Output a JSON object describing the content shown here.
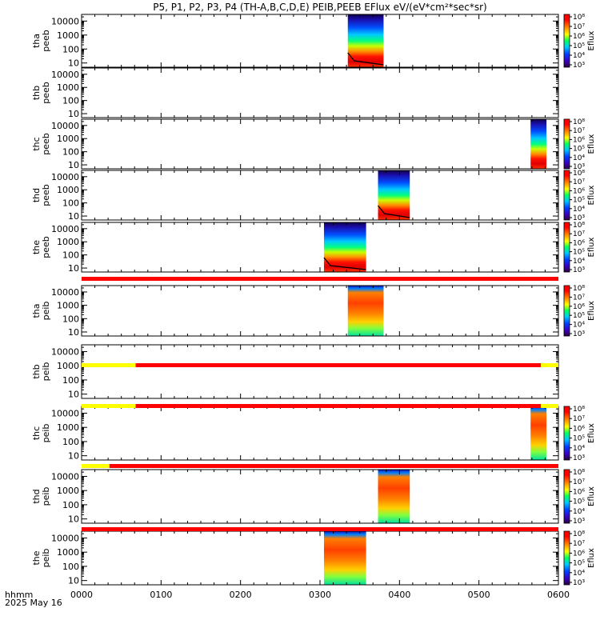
{
  "title": "P5, P1, P2, P3, P4 (TH-A,B,C,D,E) PEIB,PEEB EFlux eV/(eV*cm²*sec*sr)",
  "bottom_left_label": "hhmm",
  "date_label": "2025 May 16",
  "colorbar_label": "Eflux",
  "chart_data": {
    "type": "heatmap",
    "x_unit": "hhmm",
    "xlim": [
      "0000",
      "0600"
    ],
    "x_ticks": [
      "0000",
      "0100",
      "0200",
      "0300",
      "0400",
      "0500",
      "0600"
    ],
    "y_unit": "eV",
    "y_scale": "log",
    "y_ticks": [
      "10",
      "100",
      "1000",
      "10000"
    ],
    "colorbar_ticks": [
      "10³",
      "10⁴",
      "10⁵",
      "10⁶",
      "10⁷",
      "10⁸"
    ],
    "panels": [
      {
        "label": [
          "tha",
          "peeb"
        ],
        "data_start": "0335",
        "data_end": "0380",
        "colorbar": true,
        "pot_line": true
      },
      {
        "label": [
          "thb",
          "peeb"
        ],
        "data_start": null,
        "data_end": null,
        "colorbar": false,
        "pot_line": false
      },
      {
        "label": [
          "thc",
          "peeb"
        ],
        "data_start": "0565",
        "data_end": "0585",
        "colorbar": true,
        "pot_line": false
      },
      {
        "label": [
          "thd",
          "peeb"
        ],
        "data_start": "0373",
        "data_end": "0413",
        "colorbar": true,
        "pot_line": true
      },
      {
        "label": [
          "the",
          "peeb"
        ],
        "data_start": "0305",
        "data_end": "0358",
        "colorbar": true,
        "pot_line": true
      },
      {
        "label": [
          "tha",
          "peib"
        ],
        "data_start": "0335",
        "data_end": "0380",
        "colorbar": true,
        "pot_line": false
      },
      {
        "label": [
          "thb",
          "peib"
        ],
        "data_start": null,
        "data_end": null,
        "colorbar": false,
        "pot_line": false
      },
      {
        "label": [
          "thc",
          "peib"
        ],
        "data_start": "0565",
        "data_end": "0585",
        "colorbar": true,
        "pot_line": false
      },
      {
        "label": [
          "thd",
          "peib"
        ],
        "data_start": "0373",
        "data_end": "0413",
        "colorbar": true,
        "pot_line": false
      },
      {
        "label": [
          "the",
          "peib"
        ],
        "data_start": "0305",
        "data_end": "0358",
        "colorbar": true,
        "pot_line": false
      }
    ],
    "mode_bars": [
      {
        "segments": [
          {
            "from": "0000",
            "to": "0600",
            "color": "#ff0000"
          }
        ]
      },
      {
        "segments": [
          {
            "from": "0000",
            "to": "0068",
            "color": "#ffff00"
          },
          {
            "from": "0068",
            "to": "0578",
            "color": "#ff0000"
          },
          {
            "from": "0578",
            "to": "0600",
            "color": "#ffff00"
          }
        ]
      },
      {
        "segments": [
          {
            "from": "0000",
            "to": "0068",
            "color": "#ffff00"
          },
          {
            "from": "0068",
            "to": "0578",
            "color": "#ff0000"
          },
          {
            "from": "0578",
            "to": "0600",
            "color": "#ffff00"
          }
        ]
      },
      {
        "segments": [
          {
            "from": "0000",
            "to": "0035",
            "color": "#ffff00"
          },
          {
            "from": "0035",
            "to": "0600",
            "color": "#ff0000"
          }
        ]
      },
      {
        "segments": [
          {
            "from": "0000",
            "to": "0600",
            "color": "#ff0000"
          }
        ]
      }
    ]
  }
}
